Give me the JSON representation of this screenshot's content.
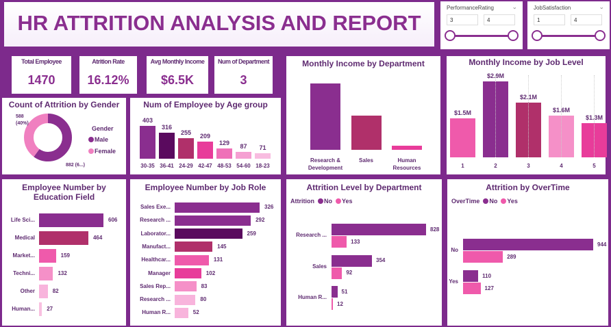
{
  "title": "HR ATTRITION ANALYSIS AND REPORT",
  "colors": {
    "background": "#7d2a8c",
    "accent": "#8a2e8f"
  },
  "slicers": [
    {
      "label": "PerformanceRating",
      "min": "3",
      "max": "4",
      "icon": "chevron-down-icon"
    },
    {
      "label": "JobSatisfaction",
      "min": "1",
      "max": "4",
      "icon": "chevron-down-icon"
    }
  ],
  "kpis": [
    {
      "label": "Total Employee",
      "value": "1470"
    },
    {
      "label": "Atrition Rate",
      "value": "16.12%"
    },
    {
      "label": "Avg Monthly Income",
      "value": "$6.5K"
    },
    {
      "label": "Num of Department",
      "value": "3"
    }
  ],
  "chart_data": [
    {
      "id": "gender",
      "type": "pie",
      "title": "Count of Attrition by Gender",
      "legend_title": "Gender",
      "legend_position": "right",
      "slices": [
        {
          "name": "Male",
          "value": 882,
          "label": "882 (6...)",
          "color": "#8a2e8f"
        },
        {
          "name": "Female",
          "value": 588,
          "label": "588 (40%)",
          "color": "#f080c0"
        }
      ]
    },
    {
      "id": "age",
      "type": "bar",
      "title": "Num of Employee by Age group",
      "categories": [
        "30-35",
        "36-41",
        "24-29",
        "42-47",
        "48-53",
        "54-60",
        "18-23"
      ],
      "values": [
        403,
        316,
        255,
        209,
        129,
        87,
        71
      ],
      "colors": [
        "#8a2e8f",
        "#5a0a5e",
        "#b0306a",
        "#e83c9a",
        "#ef70b8",
        "#f5a0d2",
        "#f8bce0"
      ]
    },
    {
      "id": "dept_income",
      "type": "bar",
      "title": "Monthly Income by Department",
      "categories": [
        "Research & Development",
        "Sales",
        "Human Resources"
      ],
      "values": [
        6.0,
        3.1,
        0.4
      ],
      "unit": "M",
      "colors": [
        "#8a2e8f",
        "#b0306a",
        "#e83c9a"
      ]
    },
    {
      "id": "joblevel",
      "type": "bar",
      "title": "Monthly Income by Job Level",
      "categories": [
        "1",
        "2",
        "3",
        "4",
        "5"
      ],
      "values": [
        1.5,
        2.9,
        2.1,
        1.6,
        1.3
      ],
      "labels": [
        "$1.5M",
        "$2.9M",
        "$2.1M",
        "$1.6M",
        "$1.3M"
      ],
      "colors": [
        "#ef5aab",
        "#8a2e8f",
        "#b0306a",
        "#f590c8",
        "#e83c9a"
      ]
    },
    {
      "id": "education",
      "type": "bar",
      "orientation": "horizontal",
      "title": "Employee Number by Education Field",
      "categories": [
        "Life Sci...",
        "Medical",
        "Market...",
        "Techni...",
        "Other",
        "Human..."
      ],
      "values": [
        606,
        464,
        159,
        132,
        82,
        27
      ],
      "colors": [
        "#8a2e8f",
        "#b0306a",
        "#ef5aab",
        "#f590c8",
        "#f8b4dc",
        "#f8c0e0"
      ]
    },
    {
      "id": "jobrole",
      "type": "bar",
      "orientation": "horizontal",
      "title": "Employee Number by Job Role",
      "categories": [
        "Sales Exe...",
        "Research ...",
        "Laborator...",
        "Manufact...",
        "Healthcar...",
        "Manager",
        "Sales Rep...",
        "Research ...",
        "Human R..."
      ],
      "values": [
        326,
        292,
        259,
        145,
        131,
        102,
        83,
        80,
        52
      ],
      "colors": [
        "#8a2e8f",
        "#8a2e8f",
        "#5a0a5e",
        "#b0306a",
        "#ef5aab",
        "#e83c9a",
        "#f590c8",
        "#f8b4dc",
        "#f8b4dc"
      ]
    },
    {
      "id": "attr_dept",
      "type": "bar",
      "orientation": "horizontal",
      "title": "Attrition Level by Department",
      "legend_title": "Attrition",
      "legend_position": "top-left",
      "categories": [
        "Research ...",
        "Sales",
        "Human R..."
      ],
      "series": [
        {
          "name": "No",
          "values": [
            828,
            354,
            51
          ],
          "color": "#8a2e8f"
        },
        {
          "name": "Yes",
          "values": [
            133,
            92,
            12
          ],
          "color": "#ef5aab"
        }
      ]
    },
    {
      "id": "overtime",
      "type": "bar",
      "orientation": "horizontal",
      "title": "Attrition by OverTime",
      "legend_title": "OverTime",
      "legend_position": "top-left",
      "categories": [
        "No",
        "Yes"
      ],
      "series": [
        {
          "name": "No",
          "values": [
            944,
            110
          ],
          "color": "#8a2e8f"
        },
        {
          "name": "Yes",
          "values": [
            289,
            127
          ],
          "color": "#ef5aab"
        }
      ]
    }
  ]
}
